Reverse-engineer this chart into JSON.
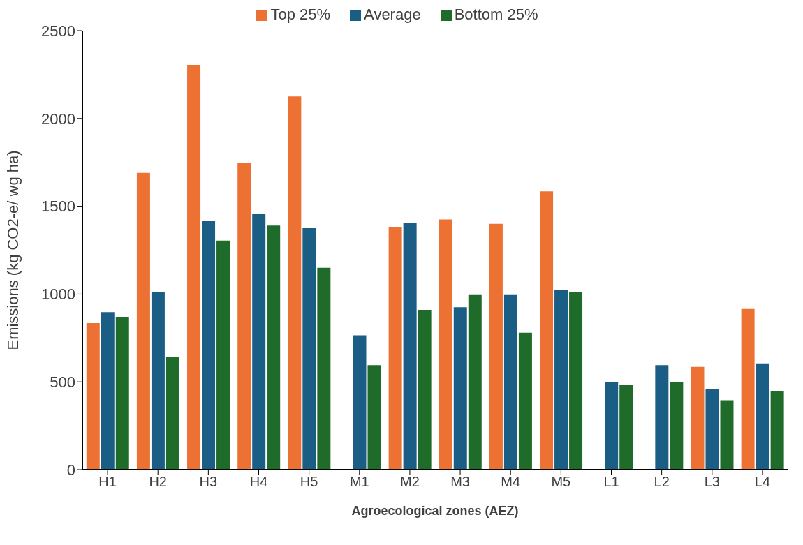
{
  "chart_data": {
    "type": "bar",
    "xlabel": "Agroecological zones (AEZ)",
    "ylabel": "Emissions (kg CO2-e/ wg ha)",
    "categories": [
      "H1",
      "H2",
      "H3",
      "H4",
      "H5",
      "M1",
      "M2",
      "M3",
      "M4",
      "M5",
      "L1",
      "L2",
      "L3",
      "L4"
    ],
    "series": [
      {
        "name": "Top 25%",
        "color": "#ed7133",
        "values": [
          835,
          1690,
          2305,
          1745,
          2125,
          null,
          1380,
          1425,
          1400,
          1585,
          null,
          null,
          585,
          915
        ]
      },
      {
        "name": "Average",
        "color": "#1a5e85",
        "values": [
          897,
          1010,
          1415,
          1455,
          1375,
          765,
          1405,
          925,
          995,
          1025,
          497,
          595,
          460,
          605
        ]
      },
      {
        "name": "Bottom 25%",
        "color": "#1e6b2a",
        "values": [
          870,
          640,
          1305,
          1390,
          1150,
          595,
          910,
          995,
          780,
          1010,
          485,
          500,
          395,
          445
        ]
      }
    ],
    "ylim": [
      0,
      2500
    ],
    "yticks": [
      0,
      500,
      1000,
      1500,
      2000,
      2500
    ],
    "grid": false,
    "legend": "top"
  }
}
